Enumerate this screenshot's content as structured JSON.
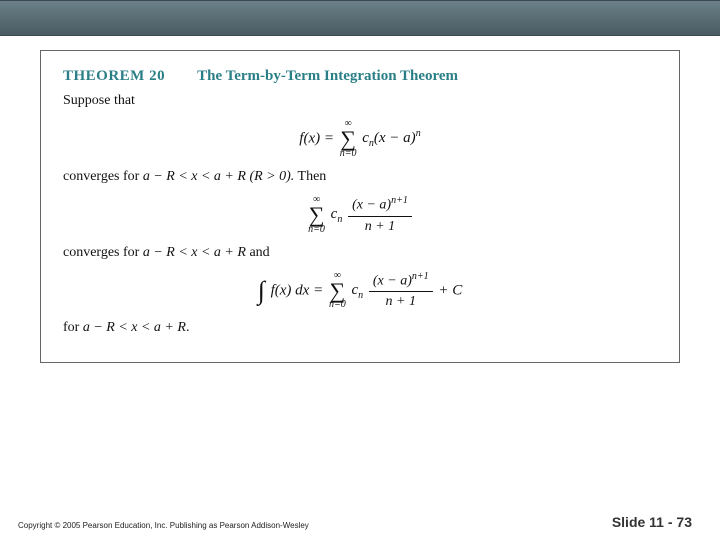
{
  "header": {
    "bar_gradient_top": "#6b8088",
    "bar_gradient_bottom": "#4a5c63"
  },
  "theorem": {
    "label": "THEOREM 20",
    "title": "The Term-by-Term Integration Theorem",
    "title_color": "#2a7f87",
    "suppose": "Suppose that",
    "eq1_lhs": "f(x)  =",
    "eq1_sum_top": "∞",
    "eq1_sum_bot": "n=0",
    "eq1_rhs": "cₙ(x − a)ⁿ",
    "conv1_pre": "converges for ",
    "conv1_ineq": "a − R < x < a + R",
    "conv1_paren": "  (R > 0).",
    "conv1_then": " Then",
    "eq2_sum_top": "∞",
    "eq2_sum_bot": "n=0",
    "eq2_cn": "cₙ",
    "eq2_frac_num": "(x − a)ⁿ⁺¹",
    "eq2_frac_den": "n + 1",
    "conv2_pre": "converges for ",
    "conv2_ineq": "a − R < x < a + R",
    "conv2_and": " and",
    "eq3_lhs": "f(x) dx  =",
    "eq3_sum_top": "∞",
    "eq3_sum_bot": "n=0",
    "eq3_cn": "cₙ",
    "eq3_frac_num": "(x − a)ⁿ⁺¹",
    "eq3_frac_den": "n + 1",
    "eq3_plus_c": "  +  C",
    "for_pre": "for ",
    "for_ineq": "a − R < x < a + R",
    "for_period": "."
  },
  "footer": {
    "copyright": "Copyright © 2005 Pearson Education, Inc.  Publishing as Pearson Addison-Wesley",
    "slide": "Slide 11 - 73"
  }
}
